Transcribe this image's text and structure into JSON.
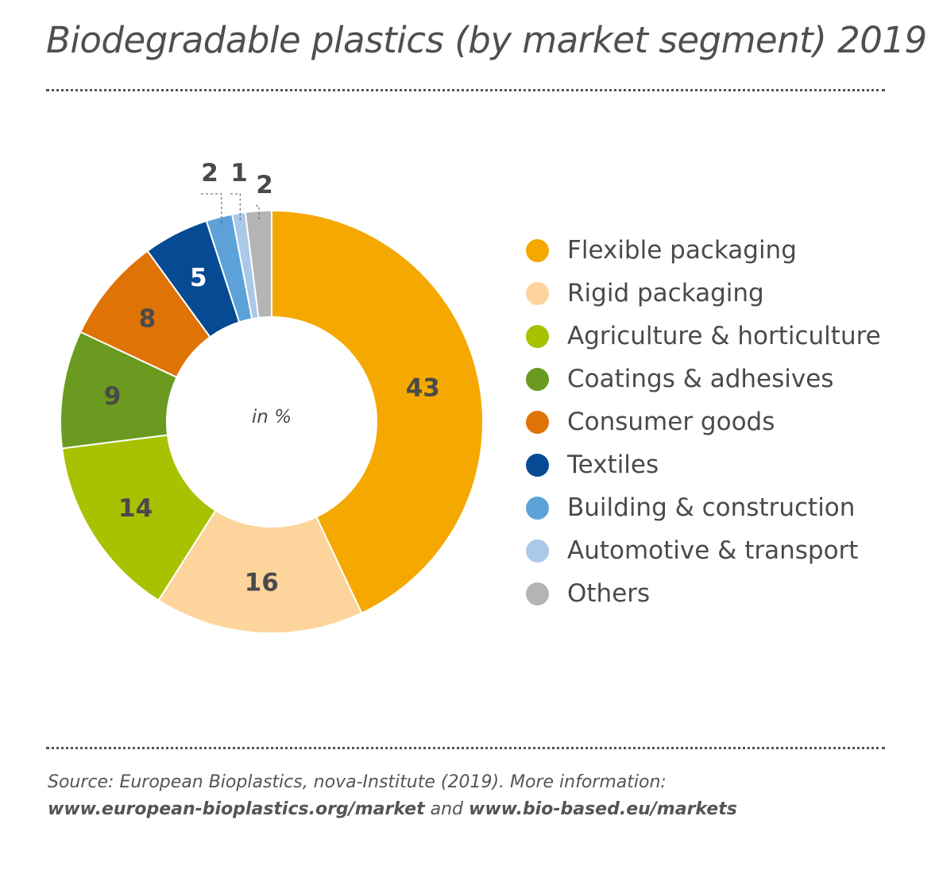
{
  "title": "Biodegradable plastics (by market segment) 2019",
  "center_label": "in %",
  "chart_data": {
    "type": "pie",
    "subtype": "donut",
    "title": "Biodegradable plastics (by market segment) 2019",
    "unit": "in %",
    "direction": "clockwise from top",
    "slices": [
      {
        "name": "Flexible packaging",
        "value": 43,
        "label": "43",
        "color": "#f5a800",
        "label_color": "#4a4a4a"
      },
      {
        "name": "Rigid packaging",
        "value": 16,
        "label": "16",
        "color": "#fdd49c",
        "label_color": "#4a4a4a"
      },
      {
        "name": "Agriculture & horticulture",
        "value": 14,
        "label": "14",
        "color": "#a8c100",
        "label_color": "#4a4a4a"
      },
      {
        "name": "Coatings & adhesives",
        "value": 9,
        "label": "9",
        "color": "#6a9a1f",
        "label_color": "#4a4a4a"
      },
      {
        "name": "Consumer goods",
        "value": 8,
        "label": "8",
        "color": "#e07306",
        "label_color": "#4a4a4a"
      },
      {
        "name": "Textiles",
        "value": 5,
        "label": "5",
        "color": "#064a93",
        "label_color": "#ffffff"
      },
      {
        "name": "Building & construction",
        "value": 2,
        "label": "2",
        "color": "#5ca2d8",
        "label_color": "#4a4a4a"
      },
      {
        "name": "Automotive & transport",
        "value": 1,
        "label": "1",
        "color": "#aac8e8",
        "label_color": "#4a4a4a"
      },
      {
        "name": "Others",
        "value": 2,
        "label": "2",
        "color": "#b4b4b4",
        "label_color": "#4a4a4a"
      }
    ],
    "legend_position": "right"
  },
  "source": {
    "line1": "Source: European Bioplastics, nova-Institute (2019). More information:",
    "link1": "www.european-bioplastics.org/market",
    "and": " and ",
    "link2": "www.bio-based.eu/markets"
  }
}
